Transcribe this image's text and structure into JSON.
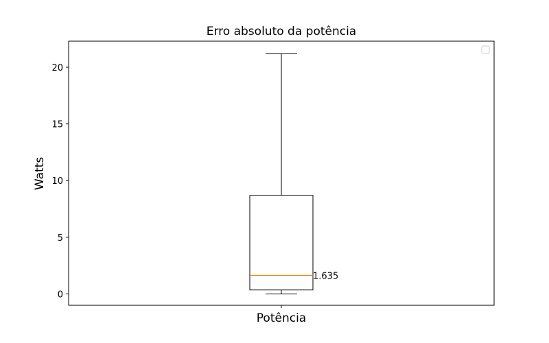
{
  "chart_data": {
    "type": "box",
    "title": "Erro absoluto da potência",
    "xlabel": "Potência",
    "ylabel": "Watts",
    "categories": [
      "Potência"
    ],
    "ylim": [
      -1.0,
      22.3
    ],
    "yticks": [
      0,
      5,
      10,
      15,
      20
    ],
    "ytick_labels": [
      "0",
      "5",
      "10",
      "15",
      "20"
    ],
    "grid": false,
    "legend": "top-right (empty)",
    "series": [
      {
        "whisker_low": 0.0,
        "q1": 0.35,
        "median": 1.635,
        "q3": 8.7,
        "whisker_high": 21.2
      }
    ],
    "annotations": [
      {
        "text": "1.635",
        "y": 1.635
      }
    ],
    "colors": {
      "box": "#000000",
      "median": "#ff7f0e",
      "axes": "#000000"
    }
  }
}
